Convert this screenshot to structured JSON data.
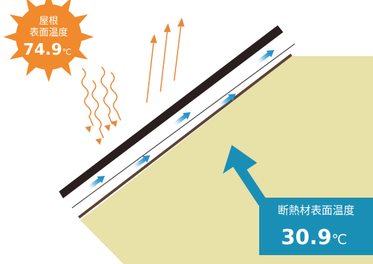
{
  "sun": {
    "label_line1": "屋根",
    "label_line2": "表面温度",
    "value": "74.9",
    "unit": "℃",
    "color": "#F08A2C"
  },
  "insulation": {
    "label": "断熱材表面温度",
    "value": "30.9",
    "unit": "℃",
    "box_color": "#1A8FB5",
    "fill_color": "#E8E1A8"
  },
  "colors": {
    "roof": "#2A1F1F",
    "heat": "#E68A3C",
    "air_arrow": "#2A93C9",
    "sheet": "#5A4436"
  }
}
